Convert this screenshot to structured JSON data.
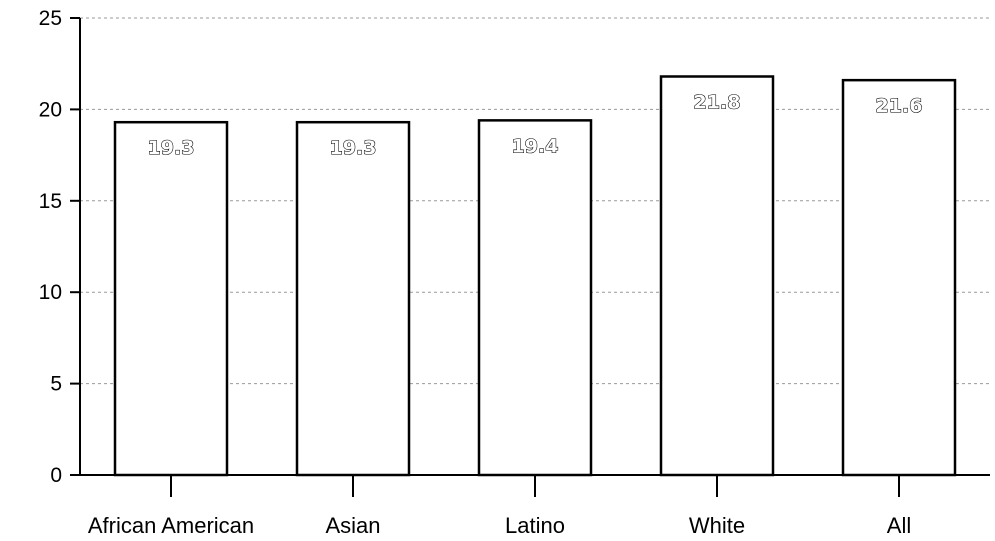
{
  "chart_data": {
    "type": "bar",
    "categories": [
      "African American",
      "Asian",
      "Latino",
      "White",
      "All"
    ],
    "values": [
      19.3,
      19.3,
      19.4,
      21.8,
      21.6
    ],
    "data_labels": [
      "19.3",
      "19.3",
      "19.4",
      "21.8",
      "21.6"
    ],
    "y_ticks": [
      "0",
      "5",
      "10",
      "15",
      "20",
      "25"
    ],
    "ylim": [
      0,
      25
    ],
    "grid": true,
    "legend": "none",
    "colors": {
      "bar_fill": "#ffffff",
      "bar_stroke": "#000000",
      "grid": "#9a9a9a"
    }
  }
}
